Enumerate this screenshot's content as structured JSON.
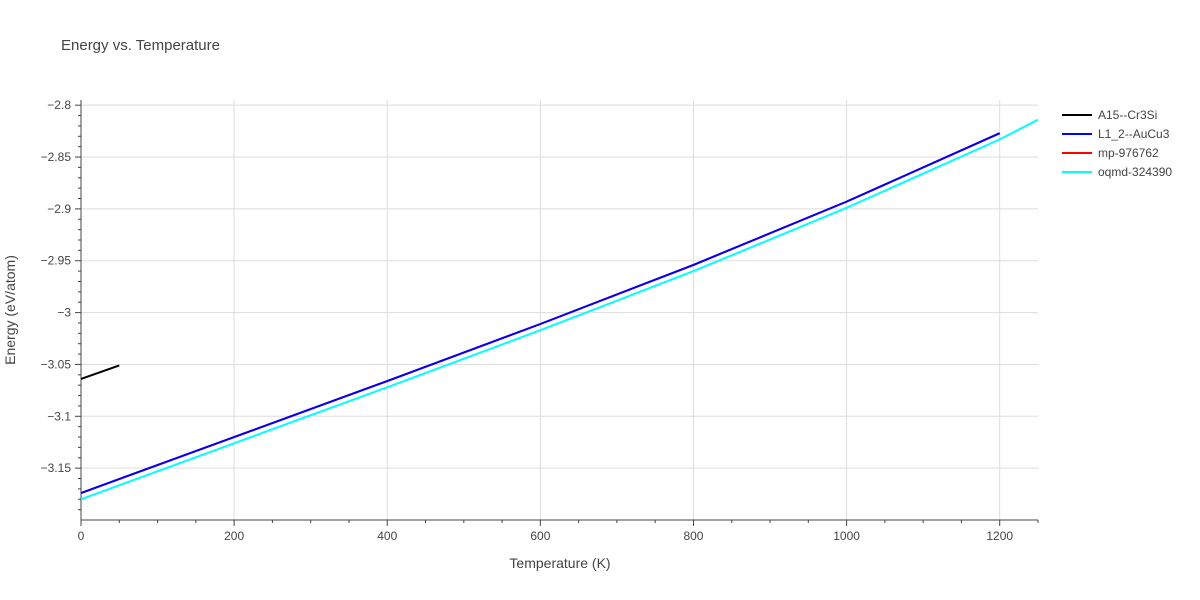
{
  "chart_data": {
    "type": "line",
    "title": "Energy vs. Temperature",
    "xlabel": "Temperature (K)",
    "ylabel": "Energy (eV/atom)",
    "xlim": [
      0,
      1250
    ],
    "ylim": [
      -3.2,
      -2.795
    ],
    "x_ticks": [
      0,
      200,
      400,
      600,
      800,
      1000,
      1200
    ],
    "x_tick_labels": [
      "0",
      "200",
      "400",
      "600",
      "800",
      "1000",
      "1200"
    ],
    "y_ticks": [
      -3.15,
      -3.1,
      -3.05,
      -3,
      -2.95,
      -2.9,
      -2.85,
      -2.8
    ],
    "y_tick_labels": [
      "−3.15",
      "−3.1",
      "−3.05",
      "−3",
      "−2.95",
      "−2.9",
      "−2.85",
      "−2.8"
    ],
    "grid": true,
    "legend_position": "top-right, outside plot",
    "series": [
      {
        "name": "A15--Cr3Si",
        "color": "#000000",
        "x": [
          0,
          50
        ],
        "y": [
          -3.064,
          -3.051
        ]
      },
      {
        "name": "L1_2--AuCu3",
        "color": "#0000ff",
        "x": [
          0,
          200,
          400,
          600,
          800,
          1000,
          1200
        ],
        "y": [
          -3.174,
          -3.12,
          -3.066,
          -3.011,
          -2.954,
          -2.893,
          -2.827
        ]
      },
      {
        "name": "mp-976762",
        "color": "#ff0000",
        "x": [
          0,
          200,
          400,
          600,
          800,
          1000,
          1200
        ],
        "y": [
          -3.174,
          -3.12,
          -3.066,
          -3.011,
          -2.954,
          -2.893,
          -2.827
        ]
      },
      {
        "name": "oqmd-324390",
        "color": "#00ffff",
        "x": [
          0,
          200,
          400,
          600,
          800,
          1000,
          1200,
          1250
        ],
        "y": [
          -3.18,
          -3.126,
          -3.072,
          -3.017,
          -2.96,
          -2.899,
          -2.833,
          -2.814
        ]
      }
    ]
  }
}
